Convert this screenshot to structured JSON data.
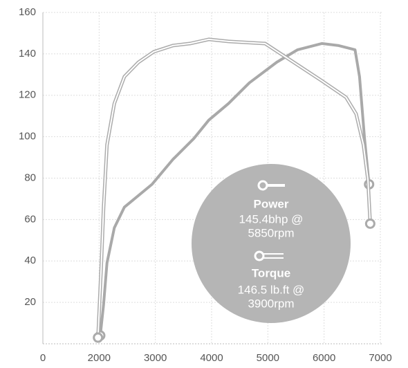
{
  "chart_data": {
    "type": "line",
    "x_origin_label": "0",
    "xlim": [
      1000,
      7000
    ],
    "xticks": [
      2000,
      3000,
      4000,
      5000,
      6000,
      7000
    ],
    "ylim": [
      0,
      160
    ],
    "yticks": [
      20,
      40,
      60,
      80,
      100,
      120,
      140,
      160
    ],
    "grid": true,
    "series": [
      {
        "name": "Power",
        "style": "single",
        "color": "#a9a9a9",
        "peak_label": [
          "145.4bhp @",
          "5850rpm"
        ],
        "x": [
          2020,
          2080,
          2140,
          2270,
          2450,
          2940,
          3310,
          3680,
          3950,
          4300,
          4670,
          5160,
          5530,
          5960,
          6260,
          6550,
          6630,
          6720,
          6800
        ],
        "values": [
          4,
          19,
          39,
          56,
          66,
          77,
          89,
          99,
          108,
          116,
          126,
          136,
          142,
          145,
          144,
          142,
          129,
          99,
          77
        ]
      },
      {
        "name": "Torque",
        "style": "double",
        "color": "#ababab",
        "peak_label": [
          "146.5 lb.ft @",
          "3900rpm"
        ],
        "x": [
          1980,
          2040,
          2080,
          2140,
          2270,
          2450,
          2700,
          2970,
          3310,
          3620,
          3950,
          4300,
          4950,
          5400,
          5960,
          6390,
          6570,
          6700,
          6780,
          6820
        ],
        "values": [
          3,
          39,
          66,
          96,
          116,
          129,
          136,
          141,
          144,
          145,
          147,
          146,
          145,
          137,
          127,
          119,
          111,
          96,
          79,
          58
        ]
      }
    ]
  }
}
